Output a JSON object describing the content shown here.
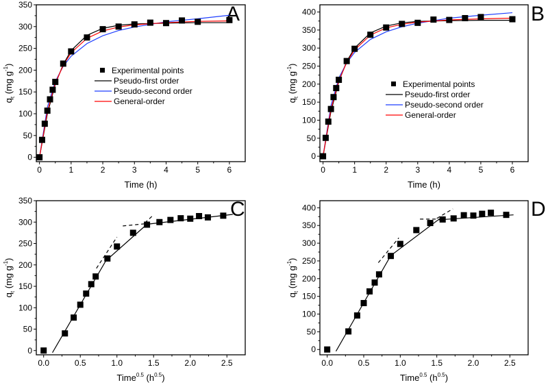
{
  "chart_data": [
    {
      "panel": "A",
      "type": "scatter+line",
      "xlabel": "Time (h)",
      "ylabel": {
        "main": "q",
        "sub": "t",
        "unit": " (mg g",
        "sup": "-1",
        "close": ")"
      },
      "xlim": [
        -0.1,
        6.5
      ],
      "ylim": [
        -10,
        350
      ],
      "xticks": [
        0,
        1,
        2,
        3,
        4,
        5,
        6
      ],
      "yticks": [
        0,
        50,
        100,
        150,
        200,
        250,
        300,
        350
      ],
      "legend_position": "center",
      "points": {
        "name": "Experimental points",
        "x": [
          0,
          0.083,
          0.167,
          0.25,
          0.333,
          0.417,
          0.5,
          0.75,
          1,
          1.5,
          2,
          2.5,
          3,
          3.5,
          4,
          4.5,
          5,
          6
        ],
        "y": [
          0,
          40,
          77,
          107,
          133,
          155,
          173,
          215,
          243,
          275,
          294,
          300,
          305,
          309,
          308,
          314,
          311,
          315
        ]
      },
      "series": [
        {
          "name": "Pseudo-first order",
          "color": "#000000",
          "x": [
            0,
            0.25,
            0.5,
            0.75,
            1,
            1.5,
            2,
            2.5,
            3,
            4,
            5,
            6
          ],
          "y": [
            0,
            100,
            168,
            213,
            245,
            280,
            296,
            303,
            306,
            308,
            309,
            309
          ]
        },
        {
          "name": "Pseudo-second order",
          "color": "#1f3fff",
          "x": [
            0,
            0.25,
            0.5,
            0.75,
            1,
            1.5,
            2,
            2.5,
            3,
            4,
            5,
            6
          ],
          "y": [
            0,
            115,
            174,
            209,
            232,
            261,
            279,
            291,
            299,
            311,
            318,
            326
          ]
        },
        {
          "name": "General-order",
          "color": "#ff0000",
          "x": [
            0,
            0.25,
            0.5,
            0.75,
            1,
            1.5,
            2,
            2.5,
            3,
            4,
            5,
            6
          ],
          "y": [
            0,
            105,
            170,
            211,
            240,
            273,
            290,
            299,
            304,
            309,
            312,
            313
          ]
        }
      ]
    },
    {
      "panel": "B",
      "type": "scatter+line",
      "xlabel": "Time (h)",
      "ylabel": {
        "main": "q",
        "sub": "t",
        "unit": " (mg g",
        "sup": "-1",
        "close": ")"
      },
      "xlim": [
        -0.1,
        6.5
      ],
      "ylim": [
        -15,
        420
      ],
      "xticks": [
        0,
        1,
        2,
        3,
        4,
        5,
        6
      ],
      "yticks": [
        0,
        50,
        100,
        150,
        200,
        250,
        300,
        350,
        400
      ],
      "legend_position": "center-right",
      "points": {
        "name": "Experimental points",
        "x": [
          0,
          0.083,
          0.167,
          0.25,
          0.333,
          0.417,
          0.5,
          0.75,
          1,
          1.5,
          2,
          2.5,
          3,
          3.5,
          4,
          4.5,
          5,
          6
        ],
        "y": [
          0,
          51,
          96,
          131,
          164,
          189,
          212,
          264,
          298,
          337,
          357,
          367,
          370,
          379,
          378,
          383,
          386,
          380
        ]
      },
      "series": [
        {
          "name": "Pseudo-first order",
          "color": "#000000",
          "x": [
            0,
            0.25,
            0.5,
            0.75,
            1,
            1.5,
            2,
            2.5,
            3,
            4,
            5,
            6
          ],
          "y": [
            0,
            124,
            207,
            263,
            300,
            342,
            361,
            370,
            374,
            376,
            377,
            377
          ]
        },
        {
          "name": "Pseudo-second order",
          "color": "#1f3fff",
          "x": [
            0,
            0.25,
            0.5,
            0.75,
            1,
            1.5,
            2,
            2.5,
            3,
            4,
            5,
            6
          ],
          "y": [
            0,
            140,
            217,
            259,
            288,
            324,
            345,
            359,
            369,
            383,
            391,
            398
          ]
        },
        {
          "name": "General-order",
          "color": "#ff0000",
          "x": [
            0,
            0.25,
            0.5,
            0.75,
            1,
            1.5,
            2,
            2.5,
            3,
            4,
            5,
            6
          ],
          "y": [
            0,
            130,
            210,
            260,
            295,
            336,
            356,
            366,
            372,
            378,
            381,
            383
          ]
        }
      ]
    },
    {
      "panel": "C",
      "type": "scatter+line",
      "xlabel": {
        "main": "Time",
        "sup": "0.5",
        "unit": " (h",
        "unitsup": "0.5",
        "close": ")"
      },
      "ylabel": {
        "main": "q",
        "sub": "t",
        "unit": " (mg g",
        "sup": "-1",
        "close": ")"
      },
      "xlim": [
        -0.1,
        2.75
      ],
      "ylim": [
        -10,
        350
      ],
      "xticks": [
        0.0,
        0.5,
        1.0,
        1.5,
        2.0,
        2.5
      ],
      "yticks": [
        0,
        50,
        100,
        150,
        200,
        250,
        300,
        350
      ],
      "points": {
        "x": [
          0,
          0.29,
          0.41,
          0.5,
          0.58,
          0.65,
          0.71,
          0.87,
          1.0,
          1.22,
          1.41,
          1.58,
          1.73,
          1.87,
          2.0,
          2.12,
          2.24,
          2.45
        ],
        "y": [
          0,
          40,
          77,
          107,
          133,
          155,
          173,
          215,
          243,
          275,
          294,
          300,
          305,
          309,
          308,
          314,
          311,
          315
        ]
      },
      "fit_lines": [
        {
          "x": [
            0.12,
            0.85,
            1.41,
            2.58
          ],
          "y": [
            -5,
            210,
            295,
            318
          ]
        }
      ],
      "dashed_lines": [
        {
          "x": [
            0.72,
            1.0
          ],
          "y": [
            192,
            265
          ]
        },
        {
          "x": [
            1.08,
            1.38
          ],
          "y": [
            291,
            296
          ]
        },
        {
          "x": [
            1.38,
            1.5
          ],
          "y": [
            298,
            317
          ]
        }
      ]
    },
    {
      "panel": "D",
      "type": "scatter+line",
      "xlabel": {
        "main": "Time",
        "sup": "0.5",
        "unit": " (h",
        "unitsup": "0.5",
        "close": ")"
      },
      "ylabel": {
        "main": "q",
        "sub": "t",
        "unit": " (mg g",
        "sup": "-1",
        "close": ")"
      },
      "xlim": [
        -0.1,
        2.75
      ],
      "ylim": [
        -15,
        420
      ],
      "xticks": [
        0.0,
        0.5,
        1.0,
        1.5,
        2.0,
        2.5
      ],
      "yticks": [
        0,
        50,
        100,
        150,
        200,
        250,
        300,
        350,
        400
      ],
      "points": {
        "x": [
          0,
          0.29,
          0.41,
          0.5,
          0.58,
          0.65,
          0.71,
          0.87,
          1.0,
          1.22,
          1.41,
          1.58,
          1.73,
          1.87,
          2.0,
          2.12,
          2.24,
          2.45
        ],
        "y": [
          0,
          51,
          96,
          131,
          164,
          189,
          212,
          264,
          298,
          337,
          357,
          367,
          370,
          379,
          378,
          383,
          386,
          380
        ]
      },
      "fit_lines": [
        {
          "x": [
            0.12,
            0.87,
            1.52,
            2.55
          ],
          "y": [
            -5,
            265,
            366,
            380
          ]
        }
      ],
      "dashed_lines": [
        {
          "x": [
            0.7,
            0.98
          ],
          "y": [
            245,
            315
          ]
        },
        {
          "x": [
            1.27,
            1.6
          ],
          "y": [
            368,
            368
          ]
        },
        {
          "x": [
            1.5,
            1.72
          ],
          "y": [
            370,
            397
          ]
        }
      ]
    }
  ]
}
